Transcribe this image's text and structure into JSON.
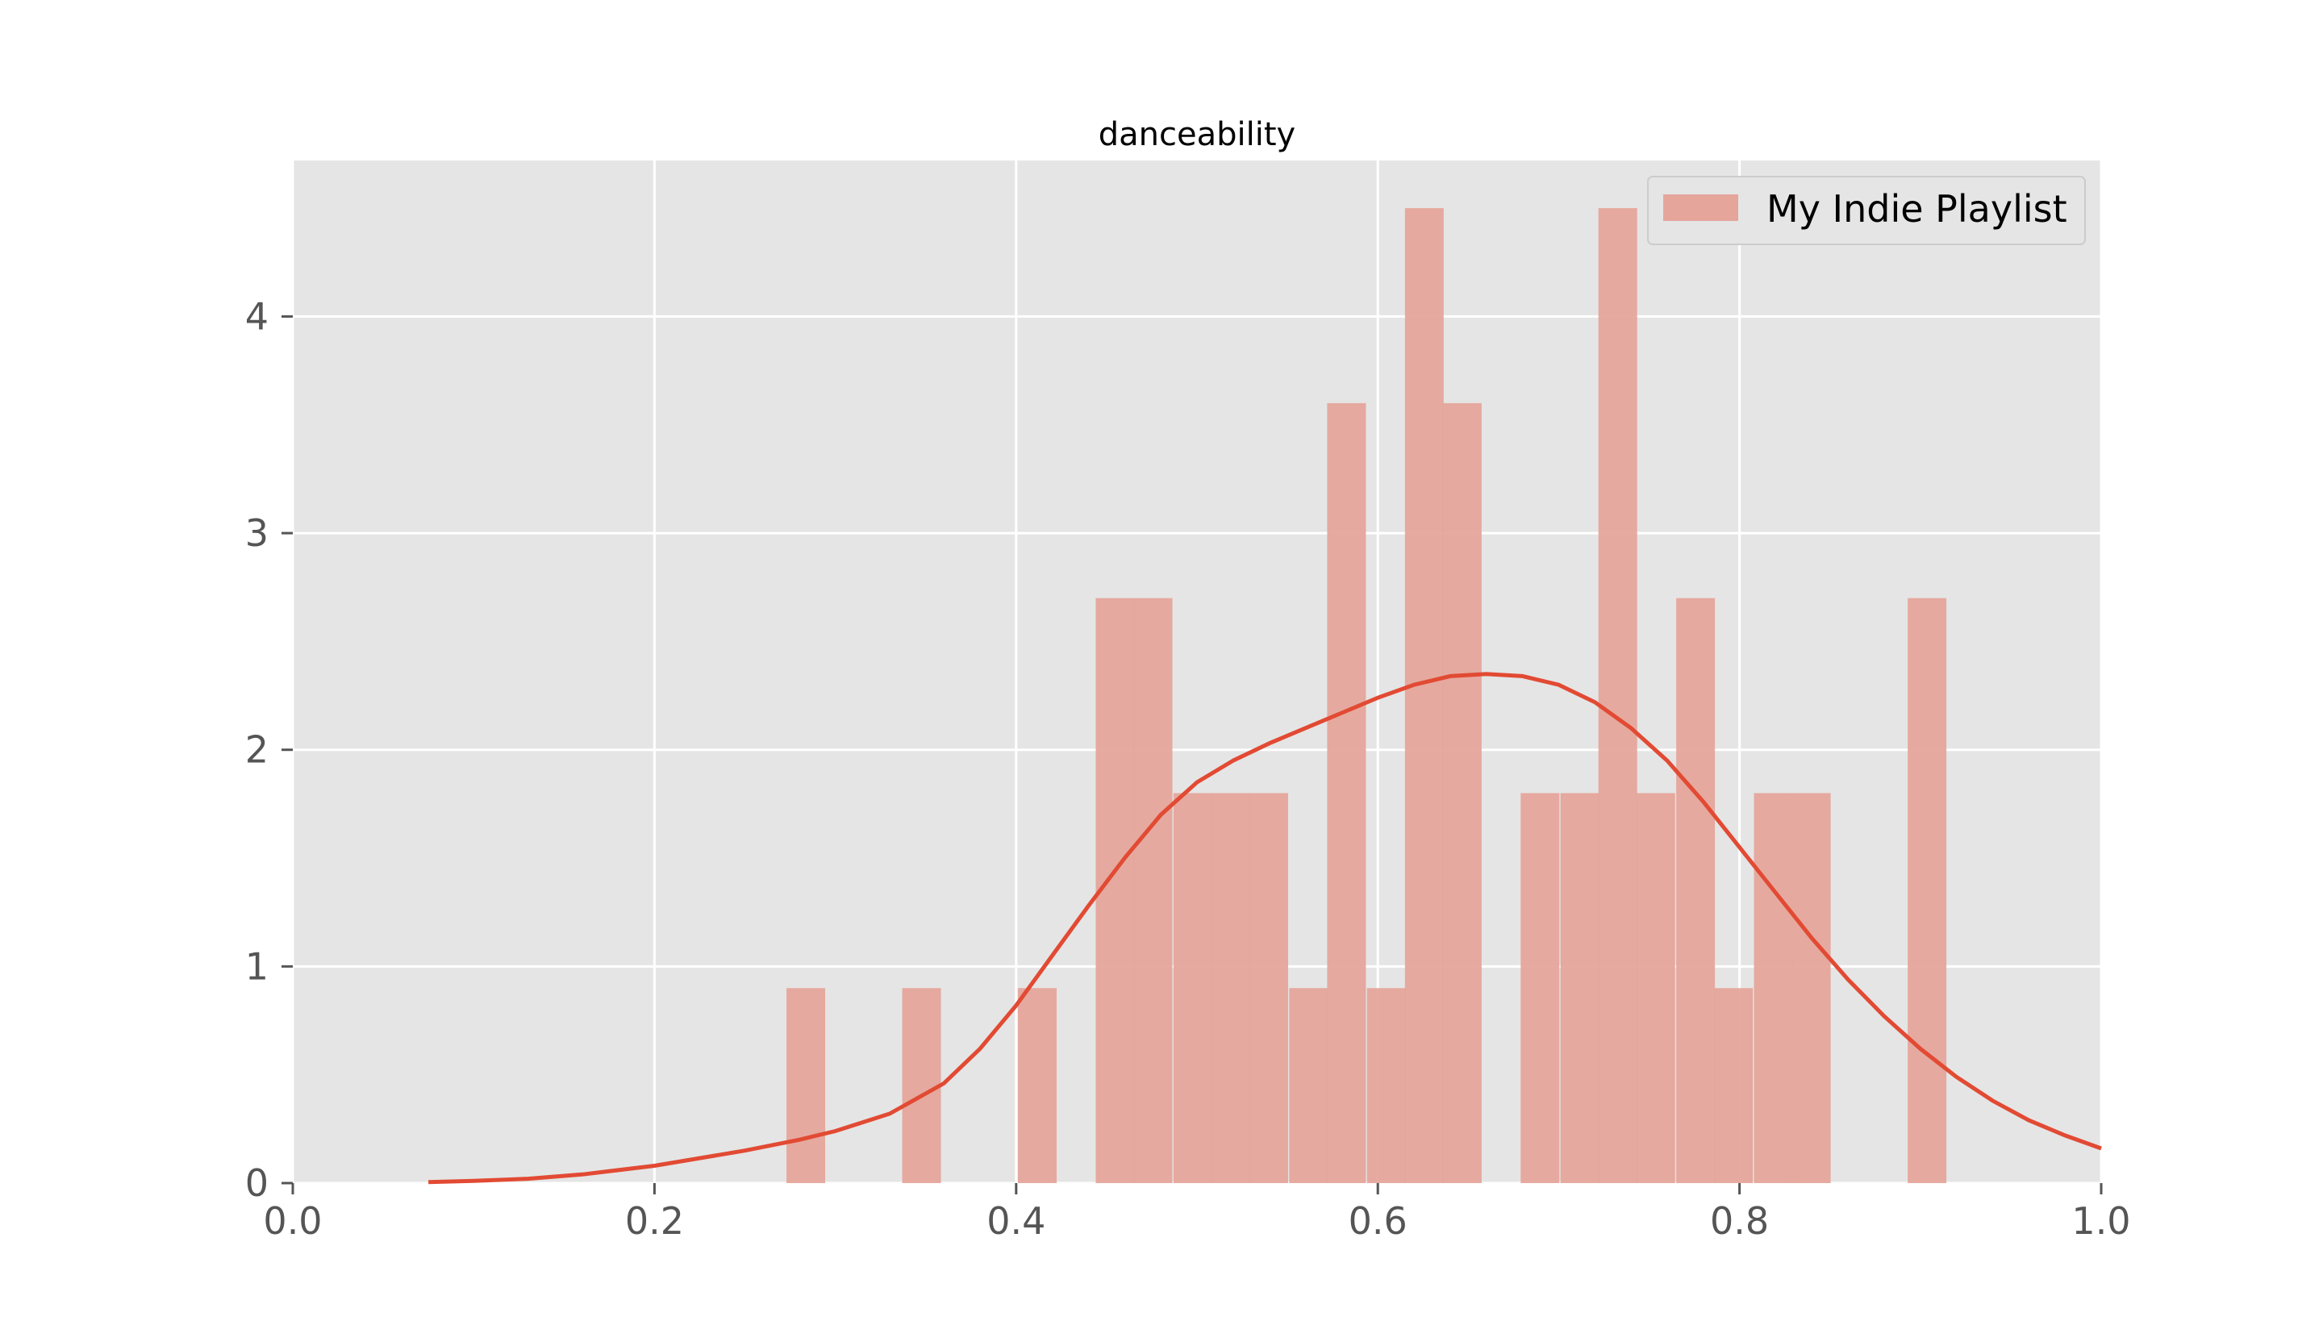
{
  "chart_data": {
    "type": "bar",
    "title": "danceability",
    "xlabel": "",
    "ylabel": "",
    "xlim": [
      0.0,
      1.0
    ],
    "ylim": [
      0,
      4.72
    ],
    "x_ticks": [
      "0.0",
      "0.2",
      "0.4",
      "0.6",
      "0.8",
      "1.0"
    ],
    "y_ticks": [
      "0",
      "1",
      "2",
      "3",
      "4"
    ],
    "grid": true,
    "legend_position": "top-right",
    "bin_width": 0.0214,
    "series": [
      {
        "name": "My Indie Playlist",
        "kind": "histogram",
        "color": "#e5a59b",
        "bins": [
          {
            "x0": 0.273,
            "height": 0.9
          },
          {
            "x0": 0.337,
            "height": 0.9
          },
          {
            "x0": 0.401,
            "height": 0.9
          },
          {
            "x0": 0.444,
            "height": 2.7
          },
          {
            "x0": 0.465,
            "height": 2.7
          },
          {
            "x0": 0.487,
            "height": 1.8
          },
          {
            "x0": 0.508,
            "height": 1.8
          },
          {
            "x0": 0.529,
            "height": 1.8
          },
          {
            "x0": 0.551,
            "height": 0.9
          },
          {
            "x0": 0.572,
            "height": 3.6
          },
          {
            "x0": 0.594,
            "height": 0.9
          },
          {
            "x0": 0.615,
            "height": 4.5
          },
          {
            "x0": 0.636,
            "height": 3.6
          },
          {
            "x0": 0.679,
            "height": 1.8
          },
          {
            "x0": 0.701,
            "height": 1.8
          },
          {
            "x0": 0.722,
            "height": 4.5
          },
          {
            "x0": 0.743,
            "height": 1.8
          },
          {
            "x0": 0.765,
            "height": 2.7
          },
          {
            "x0": 0.786,
            "height": 0.9
          },
          {
            "x0": 0.808,
            "height": 1.8
          },
          {
            "x0": 0.829,
            "height": 1.8
          },
          {
            "x0": 0.893,
            "height": 2.7
          }
        ]
      },
      {
        "kind": "kde",
        "color": "#e24a33",
        "x": [
          0.075,
          0.1,
          0.13,
          0.16,
          0.2,
          0.25,
          0.28,
          0.3,
          0.33,
          0.36,
          0.38,
          0.4,
          0.42,
          0.44,
          0.46,
          0.48,
          0.5,
          0.52,
          0.54,
          0.56,
          0.58,
          0.6,
          0.62,
          0.64,
          0.66,
          0.68,
          0.7,
          0.72,
          0.74,
          0.76,
          0.78,
          0.8,
          0.82,
          0.84,
          0.86,
          0.88,
          0.9,
          0.92,
          0.94,
          0.96,
          0.98,
          1.0
        ],
        "y": [
          0.005,
          0.01,
          0.02,
          0.04,
          0.08,
          0.15,
          0.2,
          0.24,
          0.32,
          0.46,
          0.62,
          0.82,
          1.05,
          1.28,
          1.5,
          1.7,
          1.85,
          1.95,
          2.03,
          2.1,
          2.17,
          2.24,
          2.3,
          2.34,
          2.35,
          2.34,
          2.3,
          2.22,
          2.1,
          1.95,
          1.76,
          1.55,
          1.34,
          1.13,
          0.94,
          0.77,
          0.62,
          0.49,
          0.38,
          0.29,
          0.22,
          0.16
        ]
      }
    ]
  }
}
